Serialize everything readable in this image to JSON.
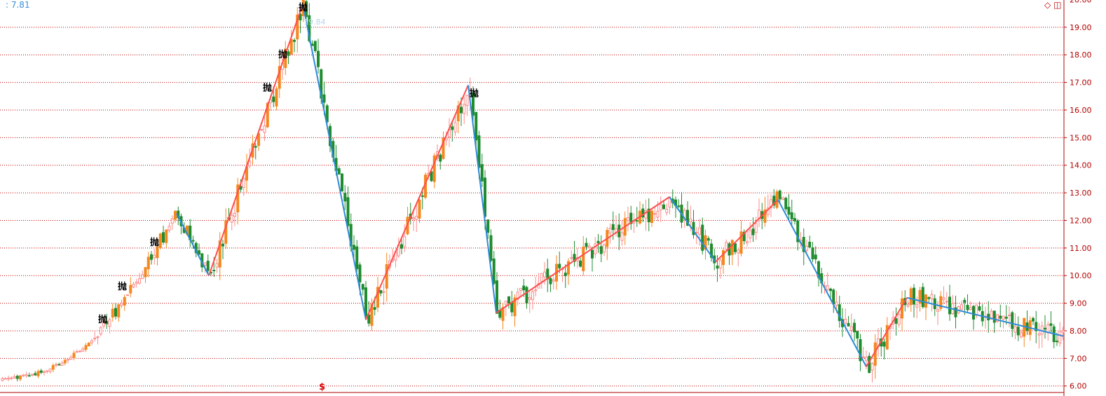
{
  "header": {
    "top_left_value": ": 7.81",
    "peak_annotation": "19.84",
    "dollar_mark": "$",
    "icons": [
      "diamond-icon",
      "panel-toggle-icon"
    ]
  },
  "colors": {
    "background": "#ffffff",
    "grid": "#c40000",
    "axis": "#b30000",
    "rising": "#ff8a8a",
    "rising_solid": "#f5871f",
    "falling": "#1e8c2f",
    "zigzag_up": "#ff4d4d",
    "zigzag_down": "#2f8ad8",
    "signal": "#000000"
  },
  "chart_data": {
    "type": "candlestick",
    "x_axis": "session index",
    "y_axis": "price",
    "ylim": [
      5.6,
      20.1
    ],
    "grid": true,
    "y_ticks": [
      "6.00",
      "7.00",
      "8.00",
      "9.00",
      "10.00",
      "11.00",
      "12.00",
      "13.00",
      "14.00",
      "15.00",
      "16.00",
      "17.00",
      "18.00",
      "19.00",
      "20.00"
    ],
    "signal_label": "抛",
    "signals": [
      {
        "x": 140,
        "y": 8.3
      },
      {
        "x": 168,
        "y": 9.5
      },
      {
        "x": 214,
        "y": 11.1
      },
      {
        "x": 375,
        "y": 16.7
      },
      {
        "x": 397,
        "y": 17.9
      },
      {
        "x": 426,
        "y": 19.6
      },
      {
        "x": 670,
        "y": 16.5
      }
    ],
    "zigzag": [
      {
        "x": 252,
        "y": 12.25
      },
      {
        "x": 298,
        "y": 10.0
      },
      {
        "x": 432,
        "y": 19.84
      },
      {
        "x": 522,
        "y": 8.4
      },
      {
        "x": 668,
        "y": 16.9
      },
      {
        "x": 708,
        "y": 8.65
      },
      {
        "x": 955,
        "y": 12.85
      },
      {
        "x": 1021,
        "y": 10.5
      },
      {
        "x": 1110,
        "y": 12.75
      },
      {
        "x": 1236,
        "y": 6.7
      },
      {
        "x": 1294,
        "y": 9.2
      },
      {
        "x": 1517,
        "y": 7.81
      }
    ],
    "candles_end_value": 7.81
  }
}
